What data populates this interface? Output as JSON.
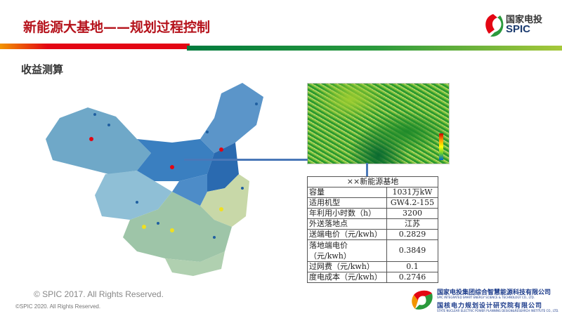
{
  "header": {
    "title": "新能源大基地——规划过程控制",
    "logo_cn": "国家电投",
    "logo_en": "SPIC"
  },
  "subtitle": "收益测算",
  "colors": {
    "title": "#b5121b",
    "bar_red": "#e30613",
    "bar_green": "#007a3d",
    "connector": "#4a78b8"
  },
  "table": {
    "title": "××新能源基地",
    "rows": [
      {
        "label": "容量",
        "value": "1031万kW"
      },
      {
        "label": "适用机型",
        "value": "GW4.2-155"
      },
      {
        "label": "年利用小时数（h）",
        "value": "3200"
      },
      {
        "label": "外送落地点",
        "value": "江苏"
      },
      {
        "label": "送端电价（元/kwh）",
        "value": "0.2829"
      },
      {
        "label": "落地端电价（元/kwh）",
        "value": "0.3849"
      },
      {
        "label": "过网费（元/kwh）",
        "value": "0.1"
      },
      {
        "label": "度电成本（元/kwh）",
        "value": "0.2746"
      }
    ]
  },
  "footer": {
    "copyright_main": "© SPIC 2017. All Rights Reserved.",
    "copyright_small": "©SPIC 2020. All Rights Reserved.",
    "company1": "国家电投集团综合智慧能源科技有限公司",
    "company1_en": "SPIC INTEGRATED SMART ENERGY SCIENCE & TECHNOLOGY CO., LTD.",
    "company2": "国核电力规划设计研究院有限公司",
    "company2_en": "STATE NUCLEAR ELECTRIC POWER PLANNING DESIGN&RESEARCH INSTITUTE CO., LTD."
  }
}
